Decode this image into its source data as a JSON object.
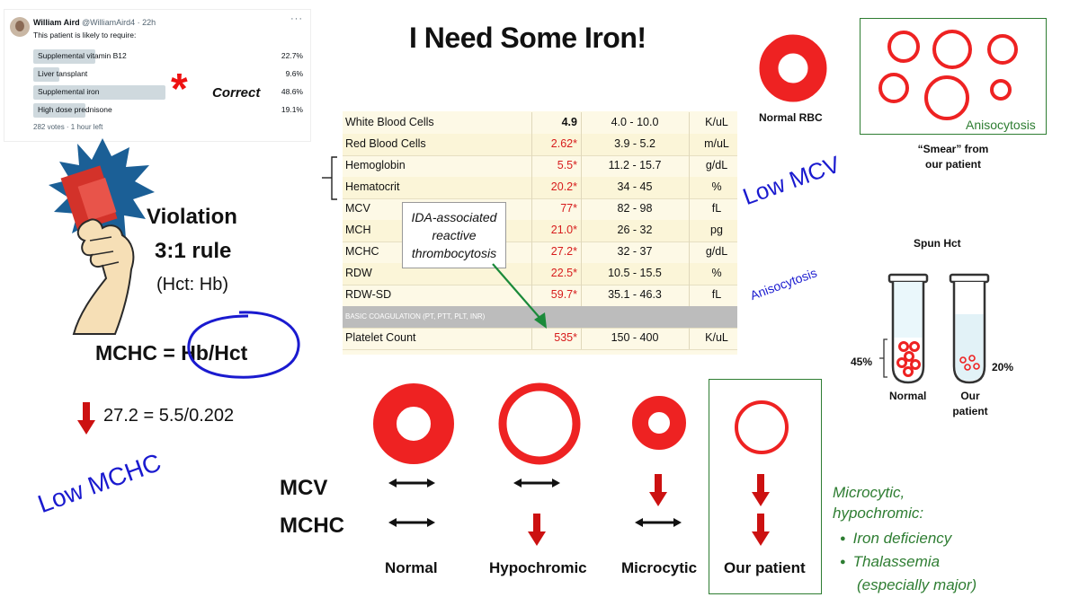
{
  "tweet": {
    "author": "William Aird",
    "handle": "@WilliamAird4 · 22h",
    "more_icon": "ellipsis-icon",
    "question": "This patient is likely to require:",
    "options": [
      {
        "label": "Supplemental vitamin B12",
        "percent": "22.7%",
        "fraction": 0.227
      },
      {
        "label": "Liver tansplant",
        "percent": "9.6%",
        "fraction": 0.096
      },
      {
        "label": "Supplemental iron",
        "percent": "48.6%",
        "fraction": 0.486
      },
      {
        "label": "High dose prednisone",
        "percent": "19.1%",
        "fraction": 0.191
      }
    ],
    "footer": "282 votes · 1 hour left"
  },
  "correct_label": "Correct",
  "title": "I Need Some Iron!",
  "lab_table": {
    "rows": [
      {
        "name": "White Blood Cells",
        "value": "4.9",
        "flag": "normal",
        "ref": "4.0 - 10.0",
        "unit": "K/uL"
      },
      {
        "name": "Red Blood Cells",
        "value": "2.62*",
        "flag": "high",
        "ref": "3.9 - 5.2",
        "unit": "m/uL"
      },
      {
        "name": "Hemoglobin",
        "value": "5.5*",
        "flag": "high",
        "ref": "11.2 - 15.7",
        "unit": "g/dL"
      },
      {
        "name": "Hematocrit",
        "value": "20.2*",
        "flag": "high",
        "ref": "34 - 45",
        "unit": "%"
      },
      {
        "name": "MCV",
        "value": "77*",
        "flag": "high",
        "ref": "82 - 98",
        "unit": "fL"
      },
      {
        "name": "MCH",
        "value": "21.0*",
        "flag": "high",
        "ref": "26 - 32",
        "unit": "pg"
      },
      {
        "name": "MCHC",
        "value": "27.2*",
        "flag": "high",
        "ref": "32 - 37",
        "unit": "g/dL"
      },
      {
        "name": "RDW",
        "value": "22.5*",
        "flag": "high",
        "ref": "10.5 - 15.5",
        "unit": "%"
      },
      {
        "name": "RDW-SD",
        "value": "59.7*",
        "flag": "high",
        "ref": "35.1 - 46.3",
        "unit": "fL"
      }
    ],
    "section_header": "BASIC COAGULATION (PT, PTT, PLT, INR)",
    "platelet": {
      "name": "Platelet Count",
      "value": "535*",
      "flag": "high",
      "ref": "150 - 400",
      "unit": "K/uL"
    }
  },
  "ida_note": [
    "IDA-associated",
    "reactive",
    "thrombocytosis"
  ],
  "low_mcv": "Low MCV",
  "anisocytosis_note": "Anisocytosis",
  "violation": {
    "line1": "Violation",
    "line2": "3:1 rule",
    "line3": "(Hct: Hb)"
  },
  "mchc_formula": {
    "left": "MCHC = ",
    "circled": "Hb/Hct"
  },
  "calc": "27.2 = 5.5/0.202",
  "low_mchc": "Low MCHC",
  "normal_rbc_label": "Normal RBC",
  "smear": {
    "label": "Anisocytosis",
    "caption_line1": "“Smear” from",
    "caption_line2": "our patient"
  },
  "spun_hct": {
    "title": "Spun Hct",
    "normal_pct": "45%",
    "patient_pct": "20%",
    "normal_label": "Normal",
    "patient_label_1": "Our",
    "patient_label_2": "patient"
  },
  "comparison": {
    "mcv_label": "MCV",
    "mchc_label": "MCHC",
    "columns": [
      {
        "label": "Normal",
        "mcv": "normal",
        "mchc": "normal"
      },
      {
        "label": "Hypochromic",
        "mcv": "normal",
        "mchc": "decreased"
      },
      {
        "label": "Microcytic",
        "mcv": "decreased",
        "mchc": "normal"
      },
      {
        "label": "Our patient",
        "mcv": "decreased",
        "mchc": "decreased"
      }
    ]
  },
  "microcytic": {
    "line1": "Microcytic,",
    "line2": "hypochromic:",
    "items": [
      "Iron deficiency",
      "Thalassemia",
      "(especially major)"
    ]
  },
  "colors": {
    "rbc_red": "#ee2222",
    "arrow_red": "#cc1111",
    "annotation_blue": "#1a1acf",
    "green": "#2e7d32"
  }
}
